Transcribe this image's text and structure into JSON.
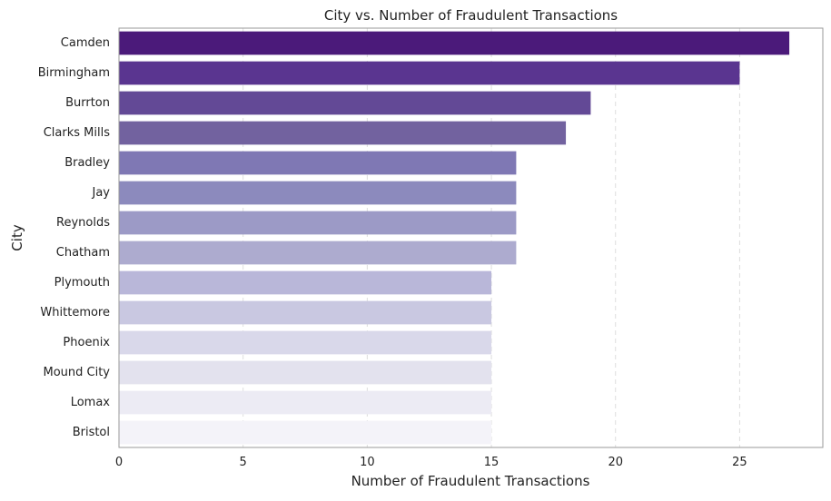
{
  "chart_data": {
    "type": "bar",
    "orientation": "horizontal",
    "title": "City vs. Number of Fraudulent Transactions",
    "xlabel": "Number of Fraudulent Transactions",
    "ylabel": "City",
    "xlim": [
      0,
      28.35
    ],
    "xticks": [
      0,
      5,
      10,
      15,
      20,
      25
    ],
    "grid": "vertical dashed",
    "categories": [
      "Camden",
      "Birmingham",
      "Burrton",
      "Clarks Mills",
      "Bradley",
      "Jay",
      "Reynolds",
      "Chatham",
      "Plymouth",
      "Whittemore",
      "Phoenix",
      "Mound City",
      "Lomax",
      "Bristol"
    ],
    "values": [
      27,
      25,
      19,
      18,
      16,
      16,
      16,
      16,
      15,
      15,
      15,
      15,
      15,
      15
    ],
    "colors": [
      "#4b1a7a",
      "#5a3590",
      "#634996",
      "#72629f",
      "#7f78b4",
      "#8c8abd",
      "#9c9ac6",
      "#adabcf",
      "#b9b7d9",
      "#c9c8e1",
      "#d9d8ea",
      "#e3e2ee",
      "#ecebf4",
      "#f4f3f9"
    ]
  }
}
